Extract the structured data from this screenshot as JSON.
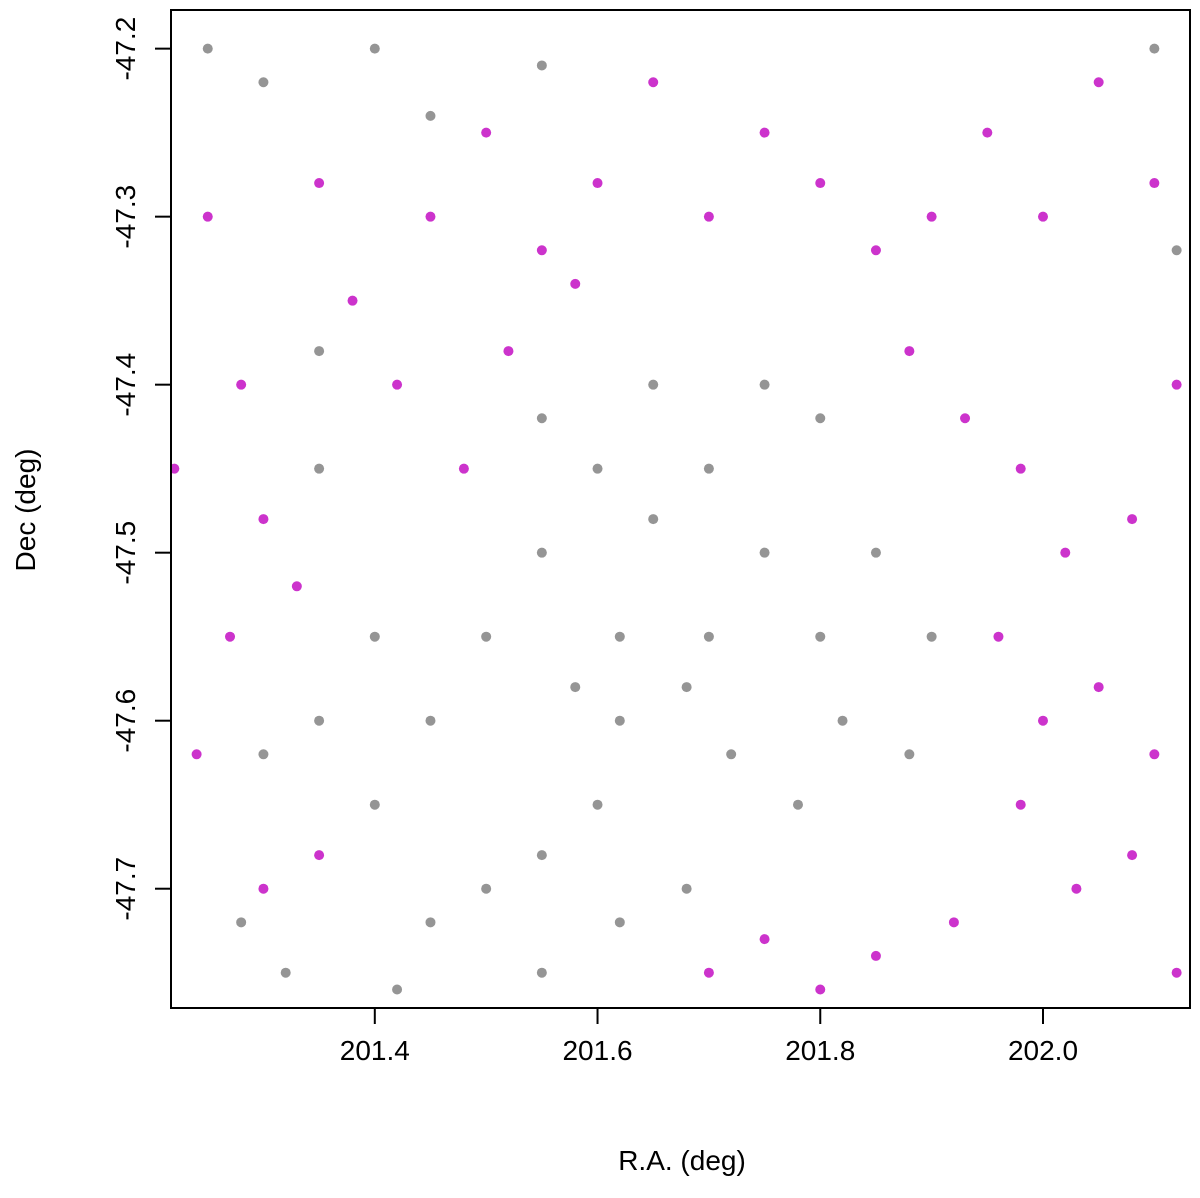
{
  "chart_data": {
    "type": "scatter",
    "x_label": "R.A. (deg)",
    "y_label": "Dec (deg)",
    "xlim": [
      201.217,
      202.132
    ],
    "ylim": [
      -47.771,
      -47.177
    ],
    "xticks": [
      201.4,
      201.6,
      201.8,
      {
        "value": 202,
        "label": "202.0"
      }
    ],
    "yticks": [
      -47.2,
      -47.3,
      -47.4,
      -47.5,
      -47.6,
      -47.7
    ],
    "series": [
      {
        "color": "#7a7a7a",
        "x": [
          201.25,
          201.3,
          201.4,
          201.45,
          201.55,
          201.35,
          201.4,
          201.45,
          201.5,
          201.55,
          201.6,
          201.65,
          201.7,
          201.75,
          201.8,
          201.85,
          201.62,
          201.68,
          201.72,
          201.78,
          201.82,
          201.88,
          201.9,
          201.6,
          201.55,
          201.5,
          201.45,
          201.4,
          201.35,
          201.3,
          201.28,
          201.32,
          201.42,
          201.55,
          201.62,
          201.68,
          201.75,
          201.65,
          201.55,
          201.8,
          202.1,
          202.12,
          201.35,
          201.62,
          201.7,
          201.58
        ],
        "y": [
          -47.2,
          -47.22,
          -47.2,
          -47.24,
          -47.21,
          -47.45,
          -47.55,
          -47.6,
          -47.55,
          -47.5,
          -47.45,
          -47.48,
          -47.45,
          -47.5,
          -47.55,
          -47.5,
          -47.55,
          -47.58,
          -47.62,
          -47.65,
          -47.6,
          -47.62,
          -47.55,
          -47.65,
          -47.68,
          -47.7,
          -47.72,
          -47.65,
          -47.6,
          -47.62,
          -47.72,
          -47.75,
          -47.76,
          -47.75,
          -47.72,
          -47.7,
          -47.4,
          -47.4,
          -47.42,
          -47.42,
          -47.2,
          -47.32,
          -47.38,
          -47.6,
          -47.55,
          -47.58
        ]
      },
      {
        "color": "#bf00bf",
        "x": [
          201.25,
          201.28,
          201.3,
          201.27,
          201.33,
          201.24,
          201.3,
          201.35,
          201.38,
          201.42,
          201.45,
          201.5,
          201.55,
          201.6,
          201.65,
          201.7,
          201.75,
          201.8,
          201.85,
          201.9,
          201.95,
          202.0,
          202.05,
          202.1,
          201.88,
          201.93,
          201.98,
          202.02,
          202.08,
          202.12,
          201.96,
          202.0,
          202.05,
          202.1,
          201.98,
          202.03,
          202.08,
          201.92,
          201.85,
          201.8,
          201.75,
          201.7,
          202.12,
          201.48,
          201.52,
          201.58,
          201.35,
          201.22
        ],
        "y": [
          -47.3,
          -47.4,
          -47.48,
          -47.55,
          -47.52,
          -47.62,
          -47.7,
          -47.68,
          -47.35,
          -47.4,
          -47.3,
          -47.25,
          -47.32,
          -47.28,
          -47.22,
          -47.3,
          -47.25,
          -47.28,
          -47.32,
          -47.3,
          -47.25,
          -47.3,
          -47.22,
          -47.28,
          -47.38,
          -47.42,
          -47.45,
          -47.5,
          -47.48,
          -47.4,
          -47.55,
          -47.6,
          -47.58,
          -47.62,
          -47.65,
          -47.7,
          -47.68,
          -47.72,
          -47.74,
          -47.76,
          -47.73,
          -47.75,
          -47.75,
          -47.45,
          -47.38,
          -47.34,
          -47.28,
          -47.45
        ]
      }
    ]
  }
}
